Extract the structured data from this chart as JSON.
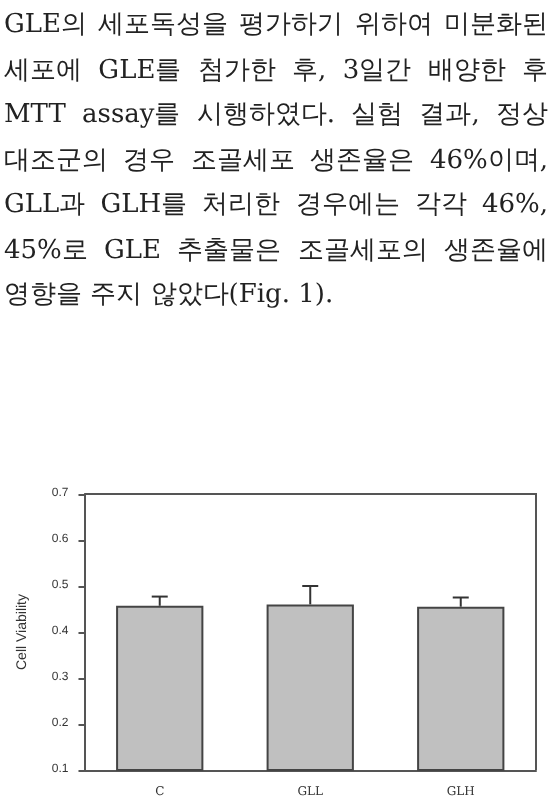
{
  "chart_data": {
    "type": "bar",
    "annotations": [
      "GLE의 세포독성을 평가하기 위하여 미분화된 세포에 GLE를 첨가한 후, 3일간 배양한 후 MTT assay를 시행하였다. 실험 결과, 정상 대조군의 경우 조골세포 생존율은 46%이며, GLL과 GLH를 처리한 경우에는 각각 46%, 45%로 GLE 추출물은 조골세포의 생존율에 영향을 주지 않았다(Fig. 1)."
    ],
    "ylabel": "Cell Viability",
    "categories": [
      "C",
      "GLL",
      "GLH"
    ],
    "values": [
      0.457,
      0.46,
      0.455
    ],
    "errors": [
      [
        0.457,
        0.477
      ],
      [
        0.46,
        0.5
      ],
      [
        0.455,
        0.475
      ]
    ],
    "color": "#c0c0c0",
    "ylim": [
      0.1,
      0.7
    ],
    "yticks": [
      0.1,
      0.2,
      0.3,
      0.4,
      0.5,
      0.6,
      0.7
    ],
    "grid": false
  }
}
